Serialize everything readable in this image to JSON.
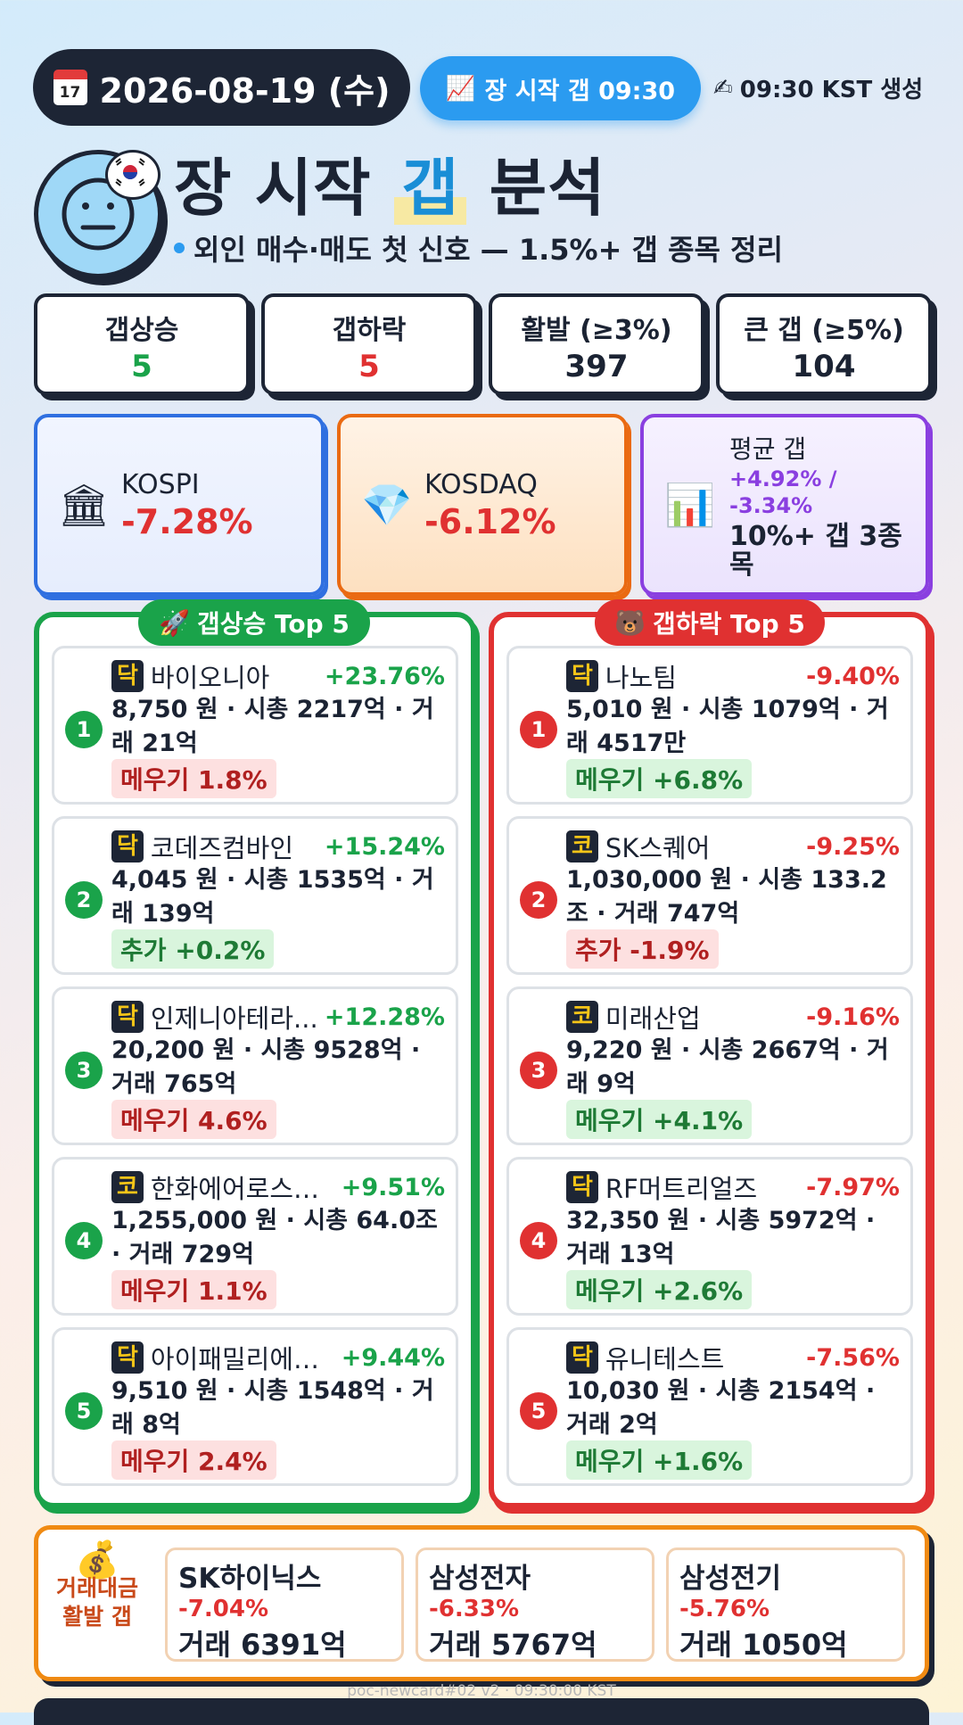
{
  "header": {
    "date": "2026-08-19 (수)",
    "calendar_icon_text": "July 17",
    "session_label": "장 시작 갭 09:30",
    "generated": "09:30 KST 생성"
  },
  "title": {
    "pre": "장 시작 ",
    "highlight": "갭",
    "post": " 분석"
  },
  "subtitle": "외인 매수·매도 첫 신호 — 1.5%+ 갭 종목 정리",
  "stats": [
    {
      "label": "갭상승",
      "value": "5",
      "color": "#1aa34a"
    },
    {
      "label": "갭하락",
      "value": "5",
      "color": "#e03131"
    },
    {
      "label": "활발 (≥3%)",
      "value": "397",
      "color": "#1b2333"
    },
    {
      "label": "큰 갭 (≥5%)",
      "value": "104",
      "color": "#1b2333"
    }
  ],
  "indices": {
    "kospi": {
      "name": "KOSPI",
      "change": "-7.28%"
    },
    "kosdaq": {
      "name": "KOSDAQ",
      "change": "-6.12%"
    },
    "avg": {
      "label": "평균 갭",
      "up": "+4.92% /",
      "down": "-3.34%",
      "note": "10%+ 갭 3종목"
    }
  },
  "gap_up": {
    "title": "갭상승 Top 5",
    "items": [
      {
        "rank": "1",
        "market": "닥",
        "name": "바이오니아",
        "gap": "+23.76%",
        "info": "8,750 원 · 시총 2217억 · 거래 21억",
        "tag": "메우기 1.8%",
        "tag_type": "red"
      },
      {
        "rank": "2",
        "market": "닥",
        "name": "코데즈컴바인",
        "gap": "+15.24%",
        "info": "4,045 원 · 시총 1535억 · 거래 139억",
        "tag": "추가 +0.2%",
        "tag_type": "green"
      },
      {
        "rank": "3",
        "market": "닥",
        "name": "인제니아테라...",
        "gap": "+12.28%",
        "info": "20,200 원 · 시총 9528억 · 거래 765억",
        "tag": "메우기 4.6%",
        "tag_type": "red"
      },
      {
        "rank": "4",
        "market": "코",
        "name": "한화에어로스페...",
        "gap": "+9.51%",
        "info": "1,255,000 원 · 시총 64.0조 · 거래 729억",
        "tag": "메우기 1.1%",
        "tag_type": "red"
      },
      {
        "rank": "5",
        "market": "닥",
        "name": "아이패밀리에스씨",
        "gap": "+9.44%",
        "info": "9,510 원 · 시총 1548억 · 거래 8억",
        "tag": "메우기 2.4%",
        "tag_type": "red"
      }
    ]
  },
  "gap_down": {
    "title": "갭하락 Top 5",
    "items": [
      {
        "rank": "1",
        "market": "닥",
        "name": "나노팀",
        "gap": "-9.40%",
        "info": "5,010 원 · 시총 1079억 · 거래 4517만",
        "tag": "메우기 +6.8%",
        "tag_type": "green"
      },
      {
        "rank": "2",
        "market": "코",
        "name": "SK스퀘어",
        "gap": "-9.25%",
        "info": "1,030,000 원 · 시총 133.2조 · 거래 747억",
        "tag": "추가 -1.9%",
        "tag_type": "red"
      },
      {
        "rank": "3",
        "market": "코",
        "name": "미래산업",
        "gap": "-9.16%",
        "info": "9,220 원 · 시총 2667억 · 거래 9억",
        "tag": "메우기 +4.1%",
        "tag_type": "green"
      },
      {
        "rank": "4",
        "market": "닥",
        "name": "RF머트리얼즈",
        "gap": "-7.97%",
        "info": "32,350 원 · 시총 5972억 · 거래 13억",
        "tag": "메우기 +2.6%",
        "tag_type": "green"
      },
      {
        "rank": "5",
        "market": "닥",
        "name": "유니테스트",
        "gap": "-7.56%",
        "info": "10,030 원 · 시총 2154억 · 거래 2억",
        "tag": "메우기 +1.6%",
        "tag_type": "green"
      }
    ]
  },
  "volume": {
    "label": "거래대금 활발 갭",
    "items": [
      {
        "name": "SK하이닉스",
        "change": "-7.04%",
        "volume": "거래 6391억"
      },
      {
        "name": "삼성전자",
        "change": "-6.33%",
        "volume": "거래 5767억"
      },
      {
        "name": "삼성전기",
        "change": "-5.76%",
        "volume": "거래 1050억"
      }
    ]
  },
  "footer": "poc-newcard#02 v2 · 09:30:00 KST",
  "colors": {
    "up": "#1aa34a",
    "down": "#e03131",
    "dark": "#1d2535",
    "accent": "#2b9bf0"
  }
}
